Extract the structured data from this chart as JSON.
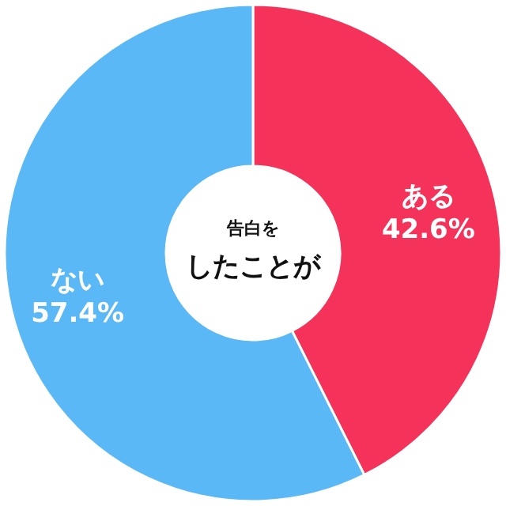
{
  "chart_data": {
    "type": "donut",
    "title": "告白を",
    "subtitle": "したことが",
    "categories": [
      "ある",
      "ない"
    ],
    "values": [
      42.6,
      57.4
    ],
    "colors": [
      "#f5325a",
      "#5ab8f6"
    ],
    "value_labels": [
      "42.6%",
      "57.4%"
    ],
    "legend": false
  }
}
